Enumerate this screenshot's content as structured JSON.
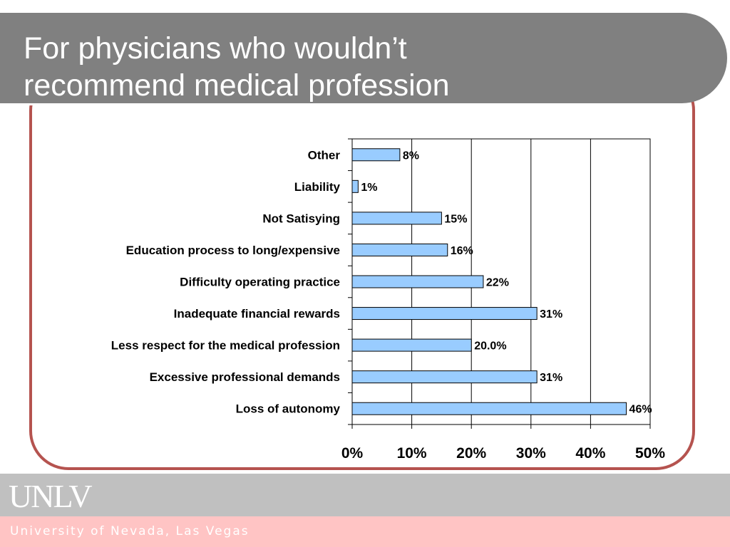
{
  "slide": {
    "title_line1": "For physicians who wouldn’t",
    "title_line2": "recommend medical profession"
  },
  "footer": {
    "logo": "UNLV",
    "university": "University of Nevada, Las Vegas"
  },
  "colors": {
    "title_bar": "#808080",
    "frame_border": "#b5534f",
    "bar_fill": "#99ccff",
    "bar_stroke": "#000000",
    "footer_top": "#c0c0c0",
    "footer_bottom": "#ffc4c4"
  },
  "chart_data": {
    "type": "bar",
    "orientation": "horizontal",
    "categories": [
      "Other",
      "Liability",
      "Not Satisying",
      "Education process to long/expensive",
      "Difficulty operating practice",
      "Inadequate financial rewards",
      "Less respect for the medical profession",
      "Excessive professional demands",
      "Loss of autonomy"
    ],
    "values": [
      8,
      1,
      15,
      16,
      22,
      31,
      20.0,
      31,
      46
    ],
    "value_labels": [
      "8%",
      "1%",
      "15%",
      "16%",
      "22%",
      "31%",
      "20.0%",
      "31%",
      "46%"
    ],
    "xlim": [
      0,
      50
    ],
    "x_ticks": [
      0,
      10,
      20,
      30,
      40,
      50
    ],
    "x_tick_labels": [
      "0%",
      "10%",
      "20%",
      "30%",
      "40%",
      "50%"
    ],
    "grid": "vertical gridlines",
    "legend": "none"
  }
}
